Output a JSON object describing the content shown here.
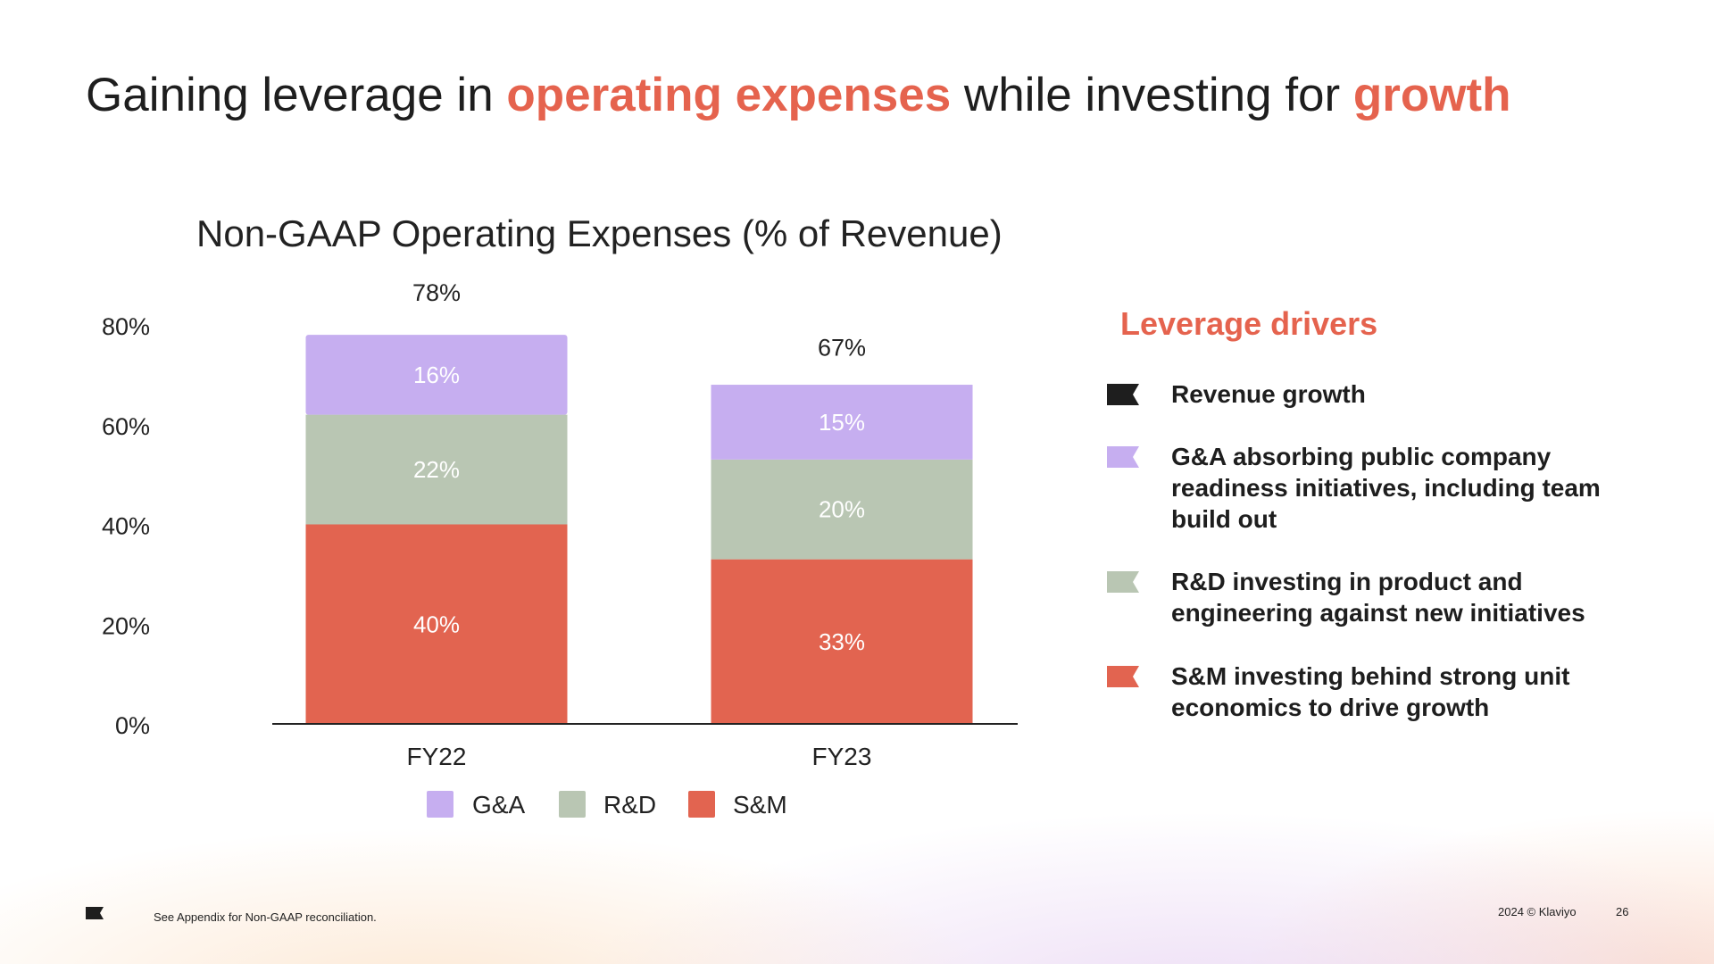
{
  "headline": {
    "part1": "Gaining leverage in ",
    "accent1": "operating expenses",
    "part2": " while investing for ",
    "accent2": "growth"
  },
  "colors": {
    "accent": "#e5634e",
    "ga": "#c6aef0",
    "rd": "#b9c6b3",
    "sm": "#e26450",
    "dark": "#1e1e1e"
  },
  "chart_data": {
    "type": "bar",
    "stacked": true,
    "title": "Non-GAAP Operating Expenses (% of Revenue)",
    "categories": [
      "FY22",
      "FY23"
    ],
    "series": [
      {
        "name": "S&M",
        "values": [
          40,
          33
        ],
        "labels": [
          "40%",
          "33%"
        ],
        "color": "#e26450"
      },
      {
        "name": "R&D",
        "values": [
          22,
          20
        ],
        "labels": [
          "22%",
          "20%"
        ],
        "color": "#b9c6b3"
      },
      {
        "name": "G&A",
        "values": [
          16,
          15
        ],
        "labels": [
          "16%",
          "15%"
        ],
        "color": "#c6aef0"
      }
    ],
    "totals": [
      78,
      67
    ],
    "total_labels": [
      "78%",
      "67%"
    ],
    "ylim": [
      0,
      80
    ],
    "yticks": [
      0,
      20,
      40,
      60,
      80
    ],
    "ytick_labels": [
      "0%",
      "20%",
      "40%",
      "60%",
      "80%"
    ],
    "legend": [
      "G&A",
      "R&D",
      "S&M"
    ],
    "legend_position": "bottom",
    "grid": false
  },
  "drivers": {
    "title": "Leverage drivers",
    "items": [
      {
        "text": "Revenue growth",
        "color": "#1e1e1e"
      },
      {
        "text": "G&A absorbing public company readiness initiatives, including team build out",
        "color": "#c6aef0"
      },
      {
        "text": "R&D investing in product and engineering against new initiatives",
        "color": "#b9c6b3"
      },
      {
        "text": "S&M investing behind strong unit economics to drive growth",
        "color": "#e26450"
      }
    ]
  },
  "footer": {
    "note": "See Appendix for Non-GAAP reconciliation.",
    "copyright": "2024 © Klaviyo",
    "page": "26"
  }
}
